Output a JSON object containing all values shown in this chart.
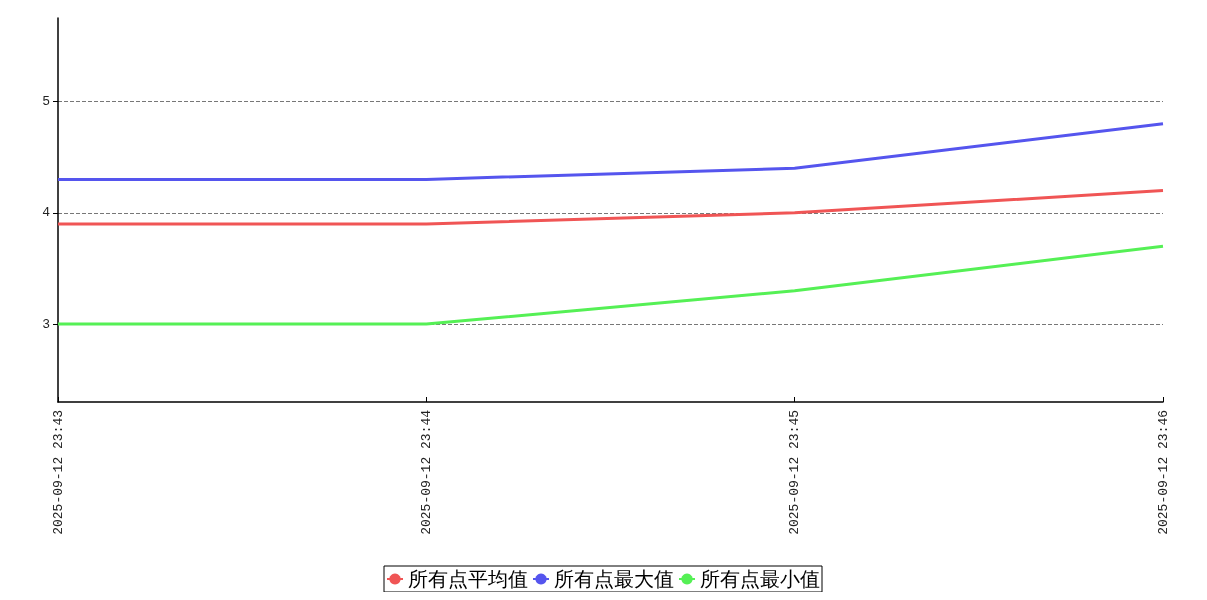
{
  "chart_data": {
    "type": "line",
    "categories": [
      "2025-09-12 23:43",
      "2025-09-12 23:44",
      "2025-09-12 23:45",
      "2025-09-12 23:46"
    ],
    "series": [
      {
        "name": "所有点平均值",
        "color": "#f05555",
        "values": [
          3.9,
          3.9,
          4.0,
          4.2
        ]
      },
      {
        "name": "所有点最大值",
        "color": "#5555ee",
        "values": [
          4.3,
          4.3,
          4.4,
          4.8
        ]
      },
      {
        "name": "所有点最小值",
        "color": "#55f055",
        "values": [
          3.0,
          3.0,
          3.3,
          3.7
        ]
      }
    ],
    "ylim": [
      2.3,
      5.75
    ],
    "yticks": [
      3,
      4,
      5
    ],
    "grid": "y",
    "legend": "bottom",
    "marker": "none",
    "line_style": "solid"
  }
}
